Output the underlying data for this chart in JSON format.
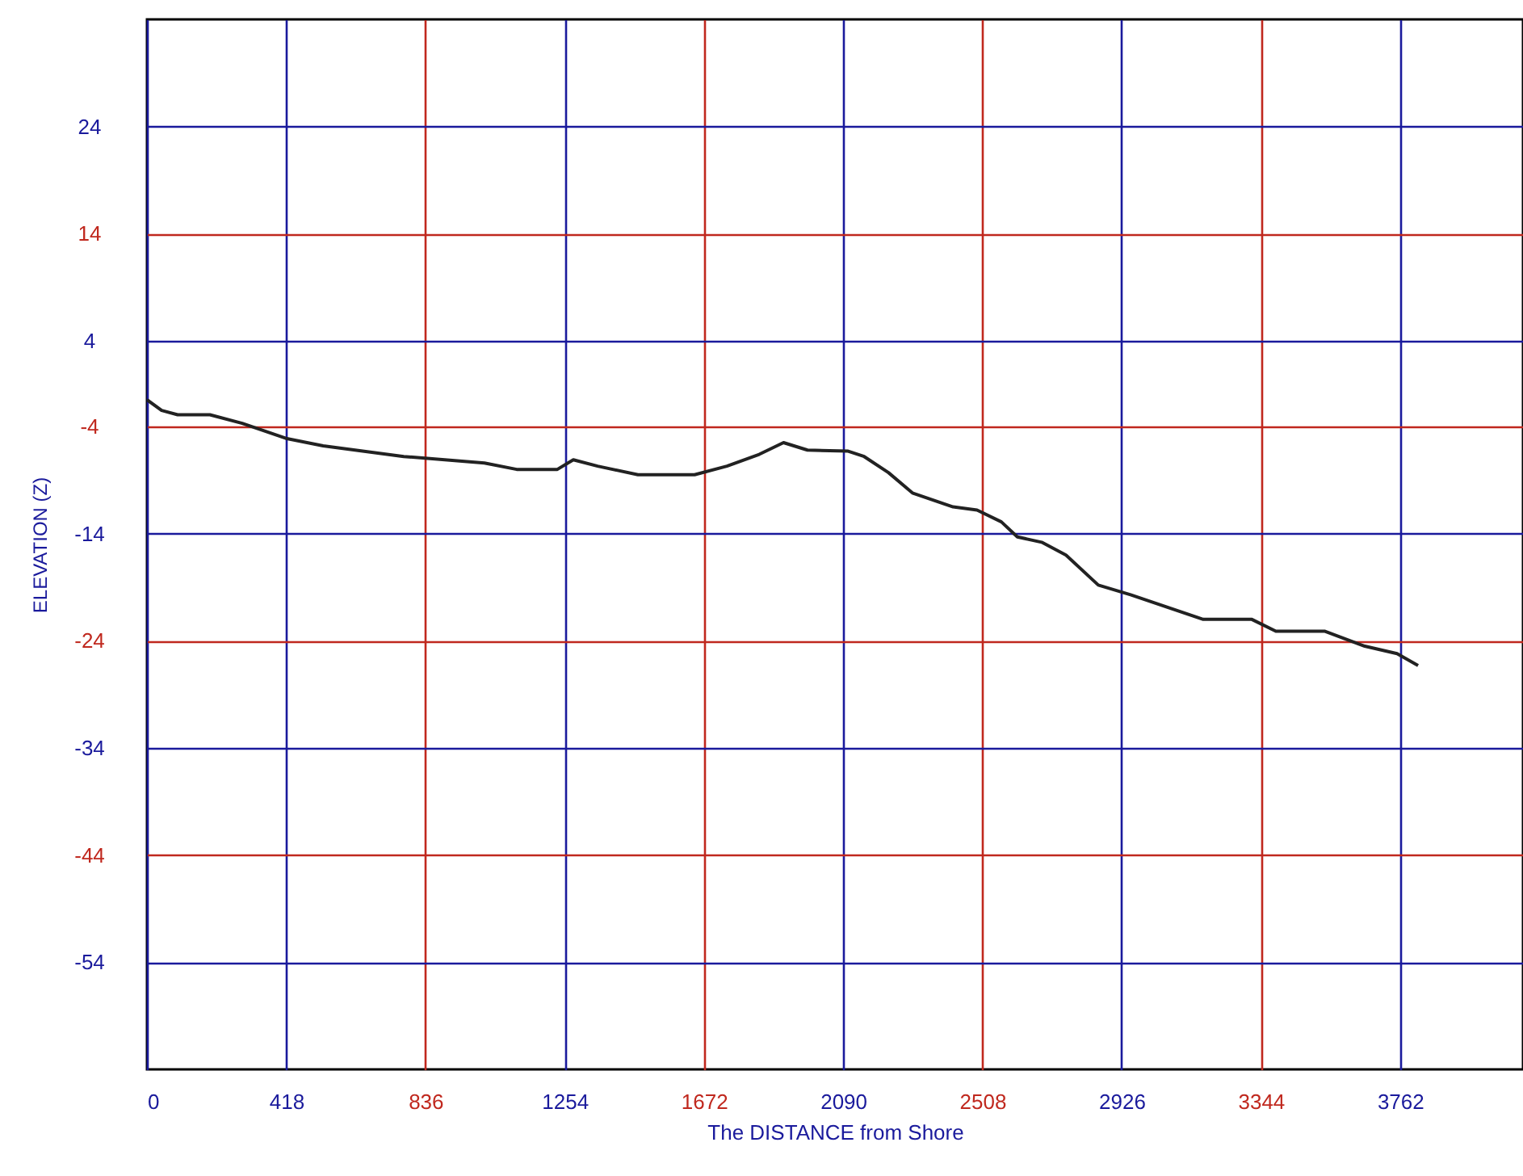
{
  "chart_data": {
    "type": "line",
    "xlabel": "The DISTANCE from Shore",
    "ylabel": "ELEVATION (Z)",
    "xlim": [
      0,
      4131
    ],
    "xticks": [
      0,
      418,
      836,
      1254,
      1672,
      2090,
      2508,
      2926,
      3344,
      3762
    ],
    "ylim": [
      -64,
      34
    ],
    "yticks": [
      24,
      14,
      4,
      -4,
      -14,
      -24,
      -34,
      -44,
      -54
    ],
    "grid": true,
    "line_style": "solid",
    "series": [
      {
        "color": "#222222",
        "x": [
          0,
          44,
          92,
          189,
          286,
          417,
          529,
          771,
          1013,
          1110,
          1232,
          1280,
          1353,
          1474,
          1644,
          1741,
          1838,
          1911,
          1983,
          2105,
          2153,
          2226,
          2298,
          2420,
          2492,
          2565,
          2613,
          2686,
          2759,
          2856,
          2953,
          3171,
          3317,
          3389,
          3535,
          3656,
          3753,
          3816
        ],
        "values": [
          -1.5,
          -2.5,
          -2.9,
          -2.9,
          -3.7,
          -5.1,
          -5.8,
          -6.8,
          -7.4,
          -8.0,
          -8.0,
          -7.1,
          -7.7,
          -8.5,
          -8.5,
          -7.7,
          -6.6,
          -5.5,
          -6.2,
          -6.3,
          -6.8,
          -8.3,
          -10.2,
          -11.5,
          -11.8,
          -12.9,
          -14.3,
          -14.8,
          -16.0,
          -18.8,
          -19.7,
          -22.0,
          -22.0,
          -23.1,
          -23.1,
          -24.5,
          -25.2,
          -26.3
        ]
      }
    ]
  }
}
